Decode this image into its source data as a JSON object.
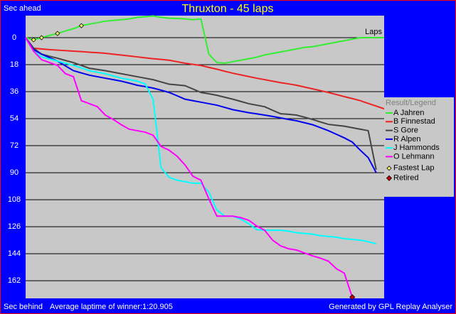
{
  "chart_data": {
    "type": "line",
    "title": "Thruxton - 45 laps",
    "y_top_label": "Sec ahead",
    "y_bottom_label": "Sec behind",
    "x_label": "Laps",
    "footer_left": "Average laptime of winner:1:20.905",
    "footer_right": "Generated by GPL Replay Analyser",
    "legend_title": "Result/Legend",
    "fastest_lap_label": "Fastest Lap",
    "retired_label": "Retired",
    "fastest_lap_color": "#ffff66",
    "retired_color": "#cc0000",
    "xlim": [
      0,
      45
    ],
    "ylim": [
      -14.7,
      173.8
    ],
    "y_inverted": true,
    "yticks": [
      0,
      18,
      36,
      54,
      72,
      90,
      108,
      126,
      144,
      162
    ],
    "grid": true,
    "x": [
      0,
      1,
      2,
      3,
      4,
      5,
      6,
      7,
      8,
      9,
      10,
      11,
      12,
      13,
      14,
      15,
      16,
      17,
      18,
      19,
      20,
      21,
      22,
      23,
      24,
      25,
      26,
      27,
      28,
      29,
      30,
      31,
      32,
      33,
      34,
      35,
      36,
      37,
      38,
      39,
      40,
      41,
      42,
      43,
      44,
      45
    ],
    "series": [
      {
        "name": "A Jahren",
        "color": "#33ee33",
        "fastest_laps": [
          1,
          2,
          4,
          7
        ],
        "values": [
          0,
          1.4,
          0,
          -1.5,
          -2.8,
          -4.5,
          -6,
          -8,
          -9,
          -10,
          -11,
          -11.5,
          -12,
          -12.5,
          -13.5,
          -14,
          -14.5,
          -13.5,
          -13,
          -12.8,
          -12.5,
          -12,
          -12.5,
          11,
          16.6,
          17,
          16,
          15,
          14,
          13,
          11.5,
          10.5,
          9.5,
          8.5,
          7.5,
          6.5,
          6,
          5,
          4,
          3,
          2,
          1,
          0,
          0,
          0,
          0
        ]
      },
      {
        "name": "B Finnestad",
        "color": "#ee2222",
        "values": [
          0,
          7,
          7.5,
          8,
          8.3,
          8.6,
          9,
          9.3,
          9.7,
          10,
          10.4,
          11,
          11.6,
          12.2,
          12.8,
          13.4,
          14,
          14.5,
          15,
          16,
          17,
          17.8,
          18.5,
          19.8,
          21,
          22.4,
          23.7,
          24.8,
          25.9,
          27,
          28,
          29,
          30,
          30.8,
          31.7,
          32.9,
          34.1,
          35.3,
          36.5,
          37.9,
          39.3,
          40.6,
          42,
          43.8,
          45.6,
          47.4
        ]
      },
      {
        "name": "S Gore",
        "color": "#444444",
        "values": [
          0,
          7,
          11,
          12.4,
          13.7,
          15.2,
          16.6,
          18.5,
          20.4,
          21.2,
          22,
          23,
          24,
          25,
          26,
          27,
          28,
          29.5,
          31,
          31.5,
          32,
          34.2,
          36.5,
          37.4,
          38.4,
          39.7,
          41,
          42.5,
          44,
          45,
          46,
          48.4,
          50.7,
          51.1,
          51.6,
          53,
          54.5,
          56.2,
          57.8,
          58.4,
          59,
          60,
          61,
          62,
          88,
          null
        ]
      },
      {
        "name": "R Alpen",
        "color": "#0000ee",
        "values": [
          0,
          8,
          11,
          13.3,
          15.6,
          18.8,
          22,
          23.5,
          25,
          26,
          27,
          28,
          29,
          30.3,
          31.7,
          32.6,
          33.6,
          35,
          36.5,
          38.7,
          41,
          42,
          43,
          44,
          45,
          46.5,
          48,
          49,
          50,
          50.8,
          51.6,
          52.5,
          53.5,
          54.5,
          55.4,
          56.7,
          58,
          60,
          62,
          64.4,
          66.8,
          69.6,
          75,
          80,
          90,
          null
        ]
      },
      {
        "name": "J Hammonds",
        "color": "#00ffff",
        "values": [
          0,
          9,
          12.8,
          14.2,
          15.6,
          17,
          18.5,
          20.2,
          22,
          23,
          24,
          25.5,
          27,
          28,
          29,
          30.8,
          41,
          86.7,
          93,
          95,
          96,
          97,
          97,
          103,
          115,
          119,
          119,
          121,
          124,
          128,
          128.4,
          128.4,
          128.4,
          129,
          130,
          130.5,
          131,
          132,
          132.5,
          133,
          134,
          134.5,
          135,
          136,
          137.4,
          null
        ]
      },
      {
        "name": "O Lehmann",
        "color": "#ff00ff",
        "retired_lap": 41,
        "values": [
          0,
          9,
          14.7,
          16.6,
          18.5,
          24,
          26,
          42,
          44,
          46,
          51.6,
          54.5,
          58,
          61,
          62,
          63,
          65,
          72.5,
          75,
          79,
          84.8,
          92.4,
          95,
          107.5,
          119,
          119,
          119,
          120,
          121.7,
          125.5,
          128.4,
          135,
          138.8,
          140.7,
          141.6,
          143.5,
          145.4,
          147,
          149,
          154,
          157,
          173,
          null,
          null,
          null,
          null
        ]
      }
    ]
  }
}
